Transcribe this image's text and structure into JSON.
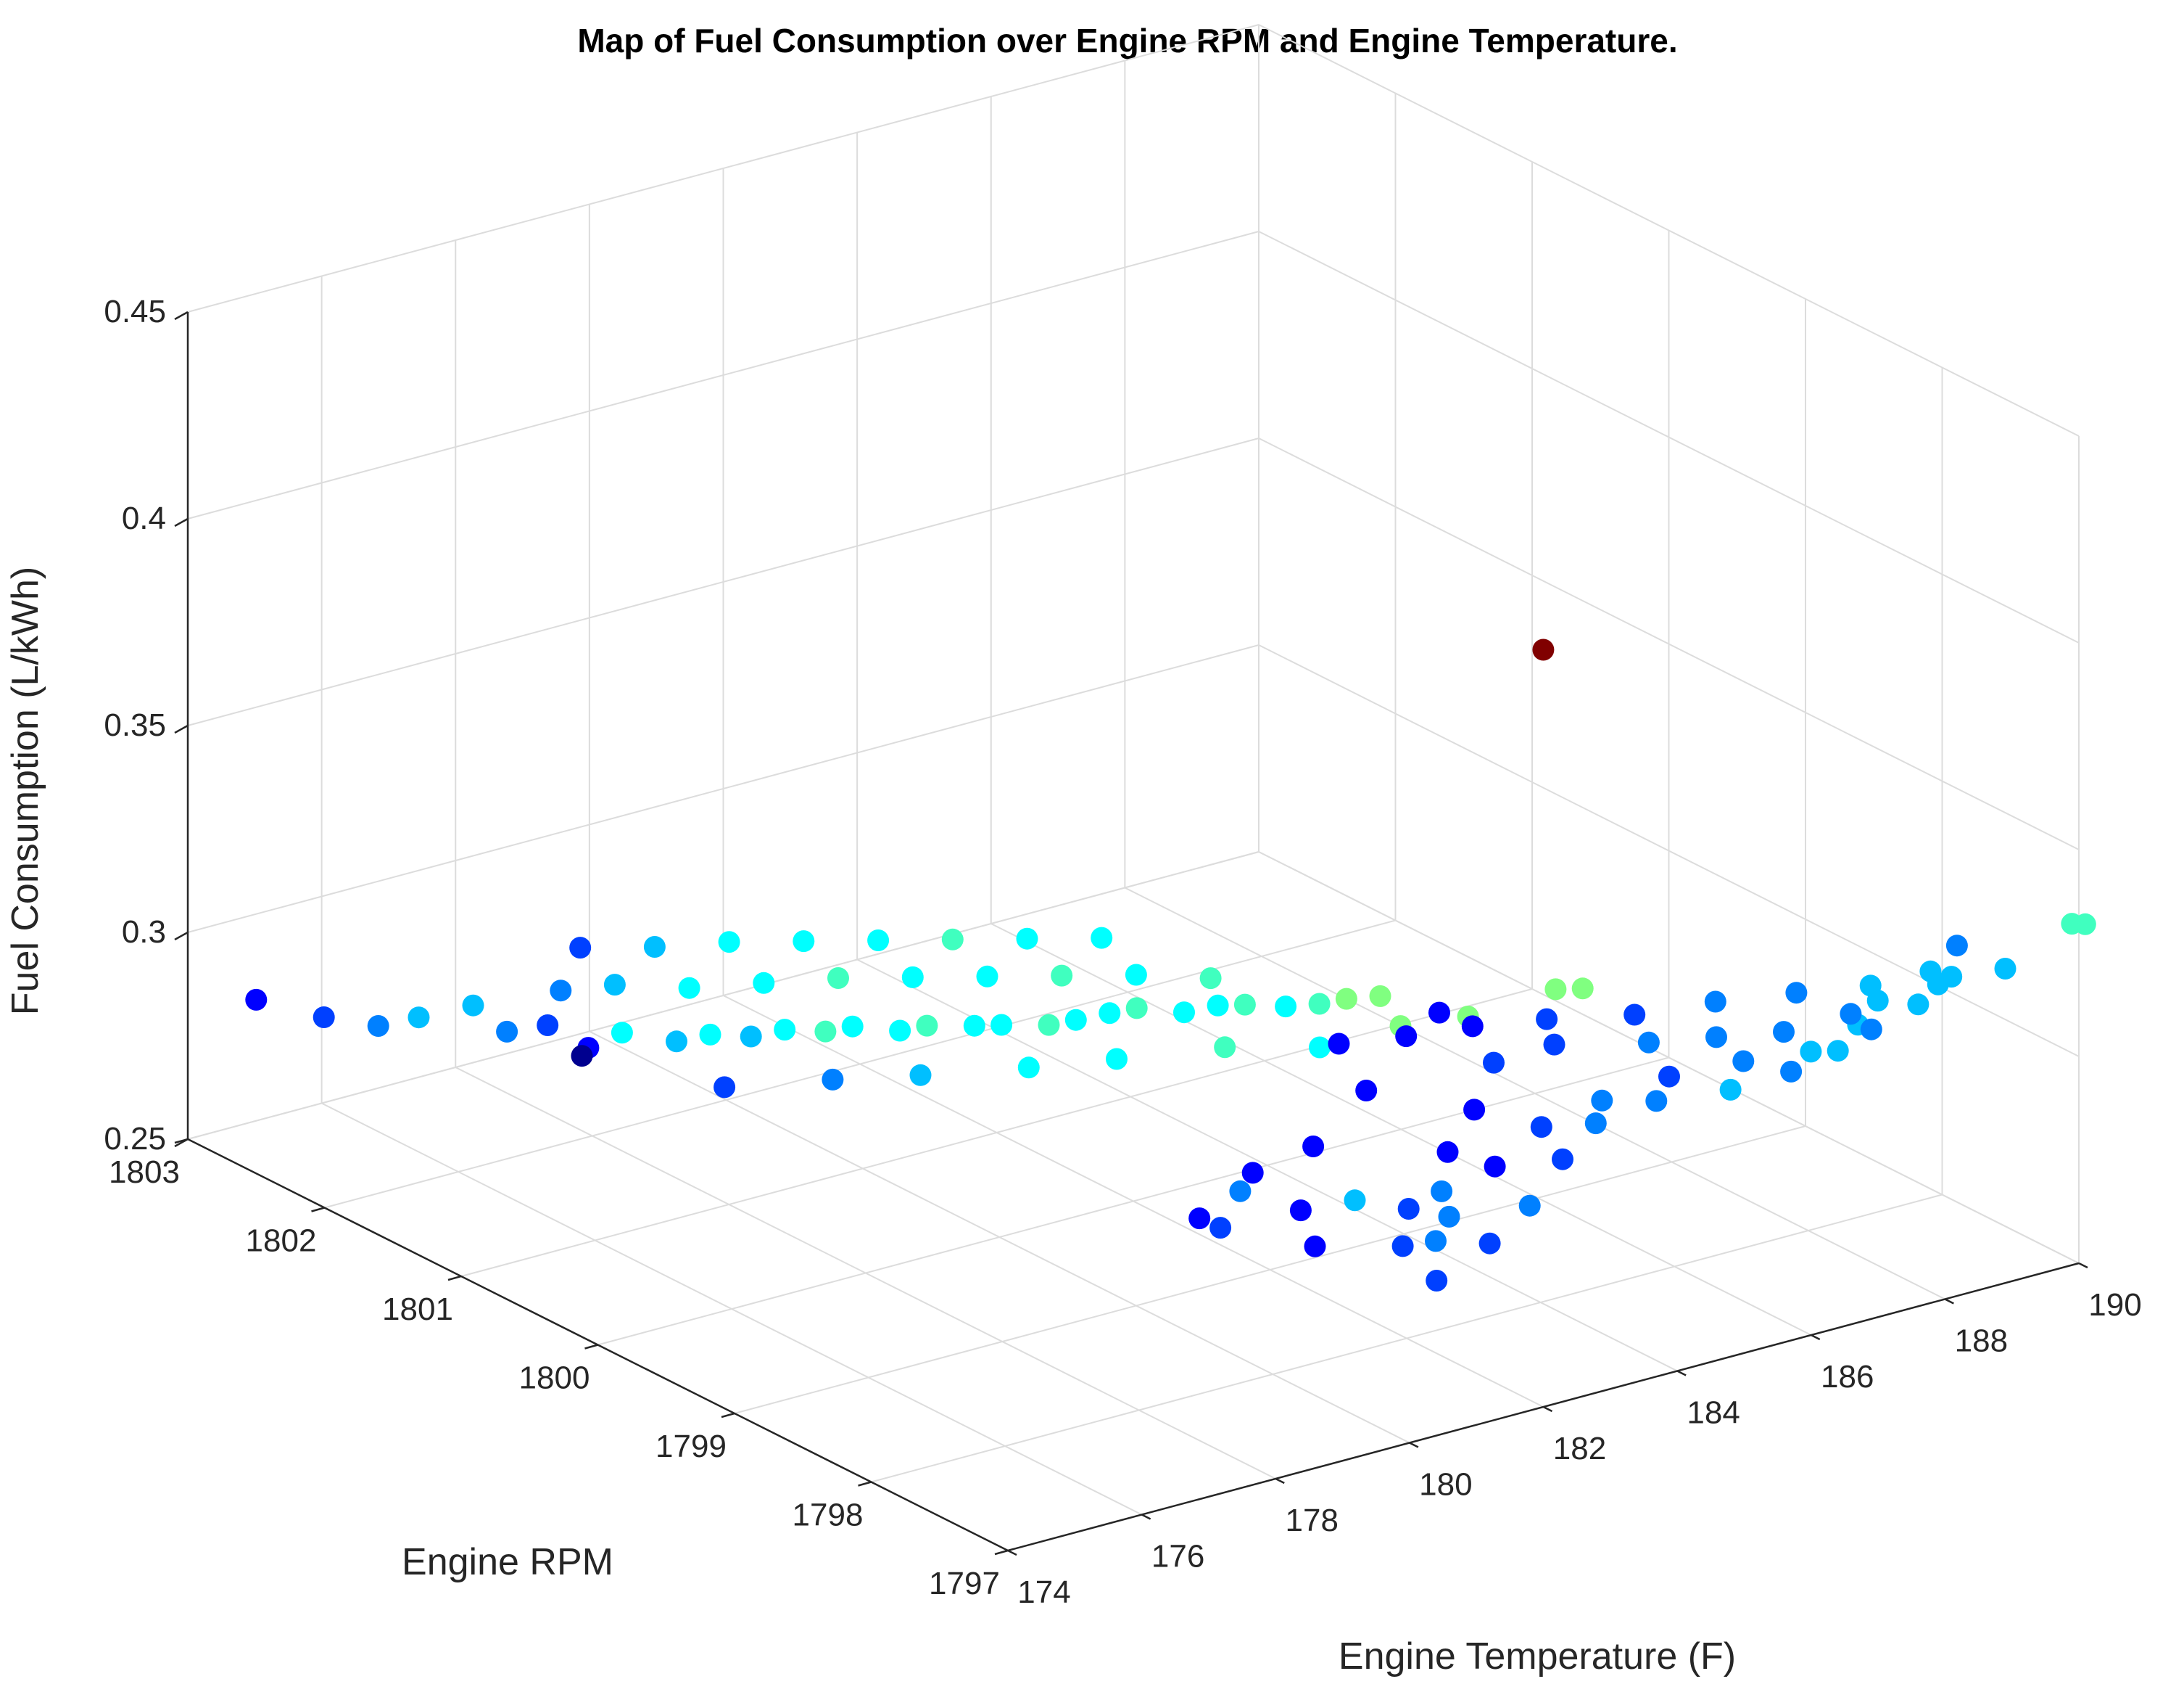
{
  "chart_data": {
    "type": "scatter",
    "title": "Map of Fuel Consumption over Engine RPM and Engine Temperature.",
    "xlabel": "Engine Temperature (F)",
    "ylabel": "Engine RPM",
    "zlabel": "Fuel Consumption (L/kWh)",
    "xlim": [
      174,
      190
    ],
    "ylim": [
      1797,
      1803
    ],
    "zlim": [
      0.25,
      0.45
    ],
    "xticks": [
      "174",
      "176",
      "178",
      "180",
      "182",
      "184",
      "186",
      "188",
      "190"
    ],
    "yticks": [
      "1797",
      "1798",
      "1799",
      "1800",
      "1801",
      "1802",
      "1803"
    ],
    "zticks": [
      "0.25",
      "0.3",
      "0.35",
      "0.4",
      "0.45"
    ],
    "grid": true,
    "colormap": "jet",
    "marker_colors": {
      "dark_blue": "#00008f",
      "blue": "#0000ff",
      "azure": "#0080ff",
      "cyan": "#00ffff",
      "teal_green": "#40ffbf",
      "green": "#80ff80",
      "dark_red": "#800000"
    },
    "points": [
      [
        174.0,
        1802.5,
        0.292
      ],
      [
        174.4,
        1802.2,
        0.291
      ],
      [
        174.6,
        1801.9,
        0.293
      ],
      [
        175.0,
        1801.8,
        0.295
      ],
      [
        175.2,
        1801.5,
        0.302
      ],
      [
        175.5,
        1801.4,
        0.296
      ],
      [
        175.7,
        1801.2,
        0.3
      ],
      [
        175.9,
        1801.0,
        0.297
      ],
      [
        176.2,
        1800.9,
        0.301
      ],
      [
        176.4,
        1800.6,
        0.303
      ],
      [
        176.7,
        1800.5,
        0.305
      ],
      [
        176.9,
        1800.3,
        0.307
      ],
      [
        177.2,
        1800.2,
        0.309
      ],
      [
        177.4,
        1800.0,
        0.311
      ],
      [
        177.6,
        1799.9,
        0.313
      ],
      [
        177.9,
        1799.7,
        0.314
      ],
      [
        178.1,
        1799.6,
        0.316
      ],
      [
        178.4,
        1799.4,
        0.318
      ],
      [
        178.6,
        1799.3,
        0.319
      ],
      [
        178.9,
        1799.1,
        0.321
      ],
      [
        179.1,
        1799.0,
        0.323
      ],
      [
        179.4,
        1798.9,
        0.325
      ],
      [
        179.6,
        1798.8,
        0.327
      ],
      [
        179.9,
        1798.6,
        0.328
      ],
      [
        180.2,
        1798.5,
        0.33
      ],
      [
        180.4,
        1798.4,
        0.331
      ],
      [
        180.6,
        1798.2,
        0.333
      ],
      [
        180.9,
        1798.1,
        0.334
      ],
      [
        181.1,
        1798.0,
        0.336
      ],
      [
        181.4,
        1797.9,
        0.337
      ],
      [
        176.1,
        1801.3,
        0.305
      ],
      [
        176.5,
        1801.1,
        0.308
      ],
      [
        177.0,
        1800.8,
        0.31
      ],
      [
        177.5,
        1800.5,
        0.314
      ],
      [
        178.0,
        1800.2,
        0.318
      ],
      [
        178.5,
        1799.9,
        0.321
      ],
      [
        179.0,
        1799.6,
        0.324
      ],
      [
        179.5,
        1799.3,
        0.327
      ],
      [
        180.0,
        1799.0,
        0.33
      ],
      [
        180.5,
        1798.7,
        0.332
      ],
      [
        176.8,
        1801.5,
        0.309
      ],
      [
        177.3,
        1801.2,
        0.312
      ],
      [
        177.8,
        1800.9,
        0.316
      ],
      [
        178.3,
        1800.6,
        0.319
      ],
      [
        178.8,
        1800.3,
        0.322
      ],
      [
        179.3,
        1800.0,
        0.325
      ],
      [
        179.8,
        1799.7,
        0.328
      ],
      [
        180.3,
        1799.4,
        0.331
      ],
      [
        175.6,
        1800.9,
        0.298
      ],
      [
        176.3,
        1800.2,
        0.299
      ],
      [
        177.1,
        1799.8,
        0.304
      ],
      [
        177.8,
        1799.5,
        0.307
      ],
      [
        178.6,
        1799.1,
        0.312
      ],
      [
        179.3,
        1798.8,
        0.316
      ],
      [
        180.1,
        1798.4,
        0.322
      ],
      [
        180.7,
        1798.0,
        0.326
      ],
      [
        181.5,
        1797.8,
        0.331
      ],
      [
        182.1,
        1797.6,
        0.334
      ],
      [
        183.0,
        1797.4,
        0.34
      ],
      [
        183.2,
        1797.3,
        0.341
      ],
      [
        179.7,
        1798.0,
        0.3
      ],
      [
        180.4,
        1797.9,
        0.305
      ],
      [
        181.6,
        1798.1,
        0.31
      ],
      [
        178.7,
        1797.9,
        0.295
      ],
      [
        179.6,
        1797.6,
        0.298
      ],
      [
        180.6,
        1797.3,
        0.299
      ],
      [
        179.9,
        1797.0,
        0.298
      ],
      [
        180.8,
        1797.2,
        0.292
      ],
      [
        181.5,
        1797.5,
        0.296
      ],
      [
        182.0,
        1797.7,
        0.3
      ],
      [
        182.6,
        1797.8,
        0.306
      ],
      [
        183.3,
        1798.0,
        0.311
      ],
      [
        184.0,
        1797.9,
        0.314
      ],
      [
        184.8,
        1797.6,
        0.316
      ],
      [
        185.4,
        1797.4,
        0.318
      ],
      [
        186.0,
        1797.2,
        0.32
      ],
      [
        186.7,
        1797.0,
        0.322
      ],
      [
        187.2,
        1797.1,
        0.324
      ],
      [
        181.2,
        1797.0,
        0.293
      ],
      [
        182.0,
        1797.1,
        0.297
      ],
      [
        182.9,
        1797.3,
        0.301
      ],
      [
        183.6,
        1797.4,
        0.305
      ],
      [
        184.3,
        1797.3,
        0.309
      ],
      [
        185.0,
        1797.1,
        0.312
      ],
      [
        185.7,
        1797.0,
        0.315
      ],
      [
        186.4,
        1797.0,
        0.317
      ],
      [
        187.0,
        1797.2,
        0.32
      ],
      [
        182.5,
        1797.6,
        0.296
      ],
      [
        183.4,
        1797.7,
        0.3
      ],
      [
        184.1,
        1797.6,
        0.305
      ],
      [
        184.9,
        1797.5,
        0.309
      ],
      [
        185.6,
        1797.3,
        0.313
      ],
      [
        186.2,
        1797.1,
        0.316
      ],
      [
        186.9,
        1797.0,
        0.32
      ],
      [
        187.6,
        1797.0,
        0.323
      ],
      [
        188.1,
        1797.1,
        0.324
      ],
      [
        183.8,
        1798.4,
        0.311
      ],
      [
        184.5,
        1798.2,
        0.313
      ],
      [
        185.2,
        1797.9,
        0.316
      ],
      [
        186.0,
        1797.7,
        0.319
      ],
      [
        186.8,
        1797.5,
        0.321
      ],
      [
        187.5,
        1797.3,
        0.323
      ],
      [
        188.3,
        1797.1,
        0.325
      ],
      [
        188.9,
        1797.0,
        0.326
      ],
      [
        190.1,
        1797.1,
        0.33
      ],
      [
        190.3,
        1797.1,
        0.329
      ],
      [
        189.2,
        1797.5,
        0.322
      ],
      [
        188.6,
        1797.4,
        0.32
      ],
      [
        178.9,
        1797.7,
        0.304
      ],
      [
        180.0,
        1797.4,
        0.302
      ],
      [
        181.0,
        1797.2,
        0.297
      ],
      [
        178.4,
        1797.6,
        0.299
      ],
      [
        179.2,
        1797.3,
        0.296
      ],
      [
        180.2,
        1796.9,
        0.29
      ],
      [
        181.6,
        1798.3,
        0.318
      ],
      [
        182.4,
        1798.2,
        0.318
      ],
      [
        183.1,
        1798.3,
        0.319
      ],
      [
        186.9,
        1799.4,
        0.372
      ]
    ],
    "point_colors": [
      "#0000ff",
      "#0040ff",
      "#0080ff",
      "#00bfff",
      "#00bfff",
      "#0080ff",
      "#0040ff",
      "#0000ff",
      "#00ffff",
      "#00bfff",
      "#00ffff",
      "#00bfff",
      "#00ffff",
      "#40ffbf",
      "#00ffff",
      "#00ffff",
      "#40ffbf",
      "#00ffff",
      "#00ffff",
      "#40ffbf",
      "#00ffff",
      "#00ffff",
      "#40ffbf",
      "#00ffff",
      "#00ffff",
      "#40ffbf",
      "#00ffff",
      "#40ffbf",
      "#80ff80",
      "#80ff80",
      "#0080ff",
      "#00bfff",
      "#00ffff",
      "#00ffff",
      "#40ffbf",
      "#00ffff",
      "#00ffff",
      "#40ffbf",
      "#00ffff",
      "#40ffbf",
      "#0040ff",
      "#00bfff",
      "#00ffff",
      "#00ffff",
      "#00ffff",
      "#40ffbf",
      "#00ffff",
      "#00ffff",
      "#00008f",
      "#0040ff",
      "#0080ff",
      "#00bfff",
      "#00ffff",
      "#00ffff",
      "#40ffbf",
      "#00ffff",
      "#80ff80",
      "#80ff80",
      "#80ff80",
      "#80ff80",
      "#0000ff",
      "#0000ff",
      "#0000ff",
      "#0000ff",
      "#0000ff",
      "#0040ff",
      "#0040ff",
      "#0080ff",
      "#0080ff",
      "#0000ff",
      "#0000ff",
      "#0040ff",
      "#0040ff",
      "#0080ff",
      "#0080ff",
      "#0080ff",
      "#00bfff",
      "#00bfff",
      "#0040ff",
      "#0080ff",
      "#0040ff",
      "#0080ff",
      "#0080ff",
      "#00bfff",
      "#0080ff",
      "#00bfff",
      "#0080ff",
      "#0000ff",
      "#0040ff",
      "#0080ff",
      "#0040ff",
      "#0080ff",
      "#00bfff",
      "#0080ff",
      "#00bfff",
      "#00bfff",
      "#0000ff",
      "#0040ff",
      "#0040ff",
      "#0080ff",
      "#0080ff",
      "#00bfff",
      "#00bfff",
      "#00bfff",
      "#40ffbf",
      "#40ffbf",
      "#0080ff",
      "#00bfff",
      "#0080ff",
      "#00bfff",
      "#0080ff",
      "#0040ff",
      "#0000ff",
      "#0040ff",
      "#0000ff",
      "#0000ff",
      "#0000ff",
      "#800000"
    ]
  }
}
